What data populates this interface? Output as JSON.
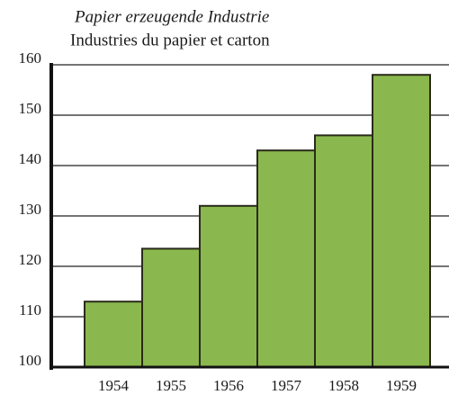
{
  "chart_data": {
    "type": "bar",
    "title": "Papier erzeugende Industrie",
    "subtitle": "Industries du papier et carton",
    "categories": [
      "1954",
      "1955",
      "1956",
      "1957",
      "1958",
      "1959"
    ],
    "values": [
      113,
      123.5,
      132,
      143,
      146,
      158
    ],
    "color": "#8ab84e",
    "ylim": [
      100,
      160
    ],
    "yticks": [
      100,
      110,
      120,
      130,
      140,
      150,
      160
    ],
    "grid": true
  }
}
